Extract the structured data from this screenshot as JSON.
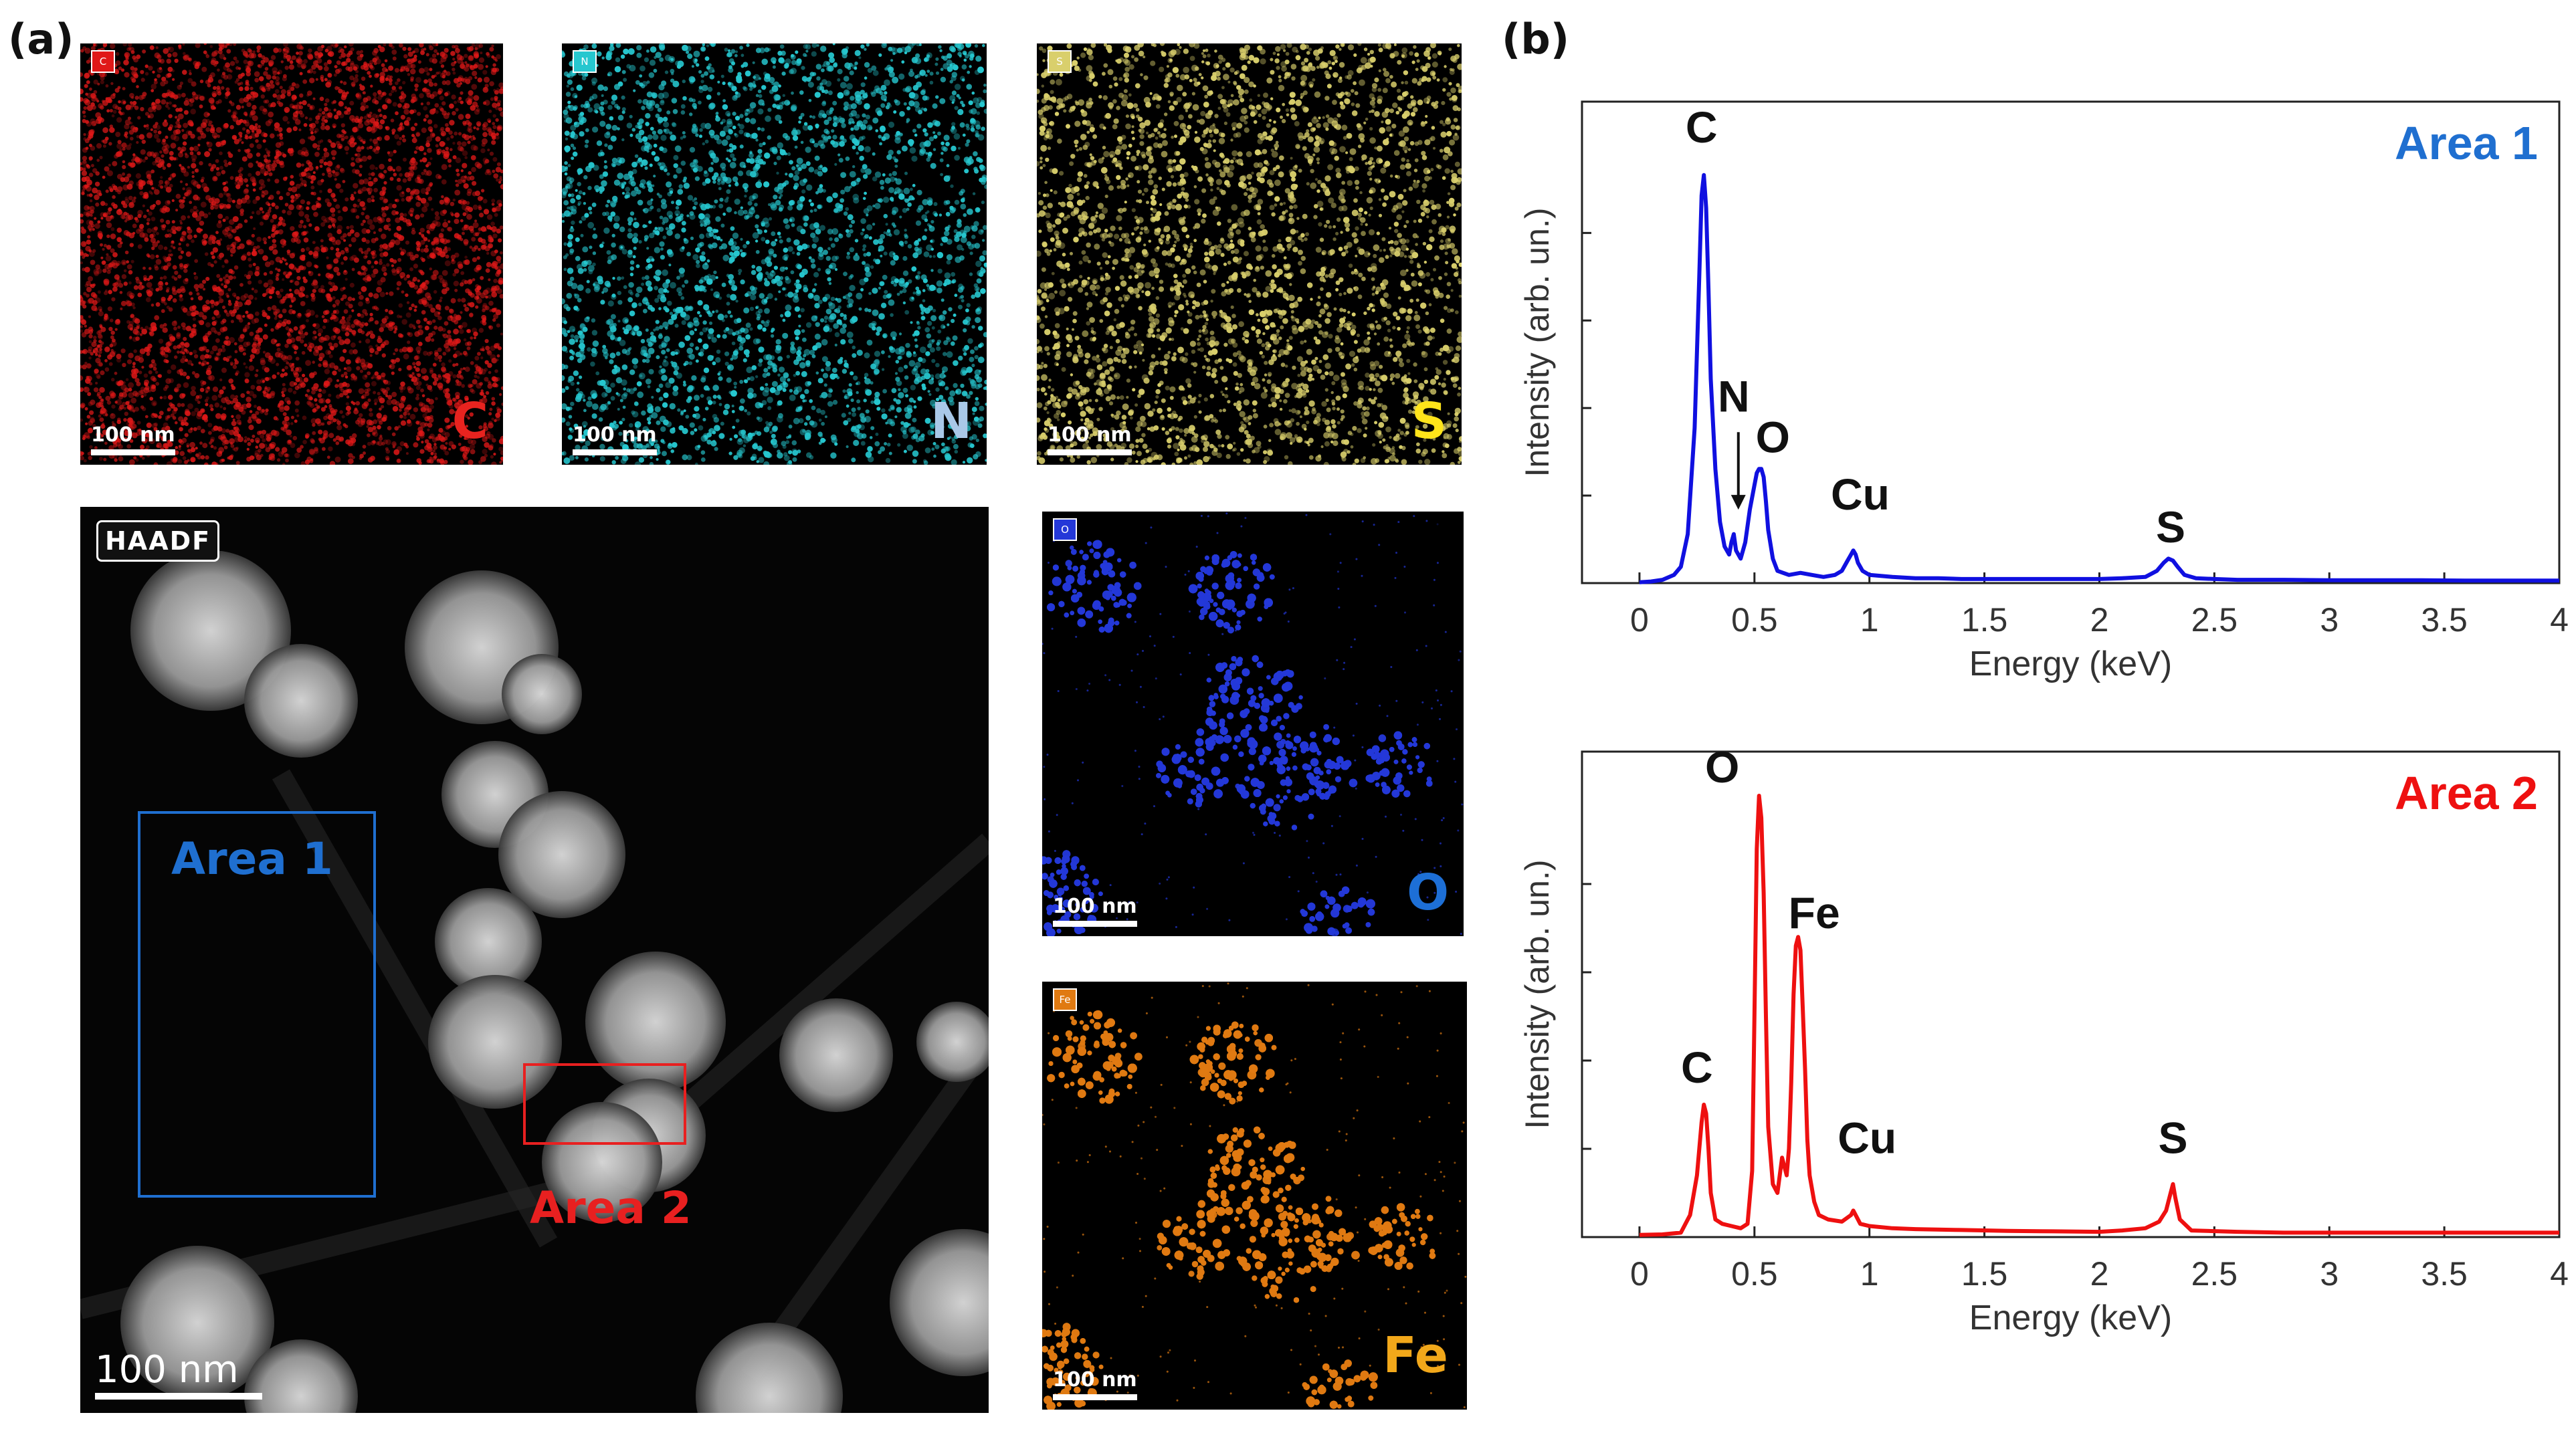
{
  "panel_labels": {
    "a": "(a)",
    "b": "(b)"
  },
  "maps": [
    {
      "key": "C",
      "chip": "C",
      "label": "C",
      "scale": "100 nm",
      "color": "#e01818",
      "label_color": "#e8231f"
    },
    {
      "key": "N",
      "chip": "N",
      "label": "N",
      "scale": "100 nm",
      "color": "#26c7cf",
      "label_color": "#a9c8e8"
    },
    {
      "key": "S",
      "chip": "S",
      "label": "S",
      "scale": "100 nm",
      "color": "#d9cf6c",
      "label_color": "#ffe41a"
    },
    {
      "key": "O",
      "chip": "O",
      "label": "O",
      "scale": "100 nm",
      "color": "#2438d8",
      "label_color": "#1d6fd6"
    },
    {
      "key": "Fe",
      "chip": "Fe",
      "label": "Fe",
      "scale": "100 nm",
      "color": "#e07a12",
      "label_color": "#f2a81a"
    }
  ],
  "haadf": {
    "tag": "HAADF",
    "scale": "100 nm",
    "area1_label": "Area 1",
    "area2_label": "Area 2",
    "area1_color": "#1f6fd0",
    "area2_color": "#e82020"
  },
  "chart_data": [
    {
      "type": "line",
      "annotation": "Area 1",
      "xlabel": "Energy (keV)",
      "ylabel": "Intensity (arb. un.)",
      "xlim": [
        -0.25,
        4
      ],
      "xticks": [
        0,
        0.5,
        1,
        1.5,
        2,
        2.5,
        3,
        3.5,
        4
      ],
      "xtick_labels": [
        "0",
        "0.5",
        "1",
        "1.5",
        "2",
        "2.5",
        "3",
        "3.5",
        "4"
      ],
      "ylim": [
        0,
        1.18
      ],
      "color": "#1010e0",
      "peak_labels": [
        {
          "text": "C",
          "x": 0.27,
          "y": 1.08
        },
        {
          "text": "N",
          "x": 0.41,
          "y": 0.42
        },
        {
          "text": "O",
          "x": 0.58,
          "y": 0.32
        },
        {
          "text": "Cu",
          "x": 0.96,
          "y": 0.18
        },
        {
          "text": "S",
          "x": 2.31,
          "y": 0.1
        }
      ],
      "arrow": {
        "from": [
          0.43,
          0.37
        ],
        "to": [
          0.43,
          0.18
        ]
      },
      "x": [
        0.0,
        0.05,
        0.1,
        0.15,
        0.18,
        0.21,
        0.24,
        0.26,
        0.27,
        0.28,
        0.29,
        0.3,
        0.31,
        0.33,
        0.35,
        0.37,
        0.39,
        0.4,
        0.41,
        0.42,
        0.44,
        0.46,
        0.48,
        0.5,
        0.51,
        0.52,
        0.53,
        0.54,
        0.55,
        0.56,
        0.58,
        0.6,
        0.65,
        0.7,
        0.75,
        0.8,
        0.85,
        0.88,
        0.9,
        0.92,
        0.93,
        0.94,
        0.95,
        0.97,
        1.0,
        1.1,
        1.2,
        1.3,
        1.4,
        1.5,
        1.6,
        1.7,
        1.8,
        1.9,
        2.0,
        2.1,
        2.2,
        2.25,
        2.28,
        2.3,
        2.32,
        2.34,
        2.37,
        2.42,
        2.5,
        2.6,
        2.8,
        3.0,
        3.2,
        3.4,
        3.6,
        3.8,
        4.0
      ],
      "y": [
        0.002,
        0.004,
        0.008,
        0.02,
        0.04,
        0.12,
        0.38,
        0.75,
        0.95,
        1.0,
        0.92,
        0.72,
        0.5,
        0.28,
        0.15,
        0.09,
        0.07,
        0.1,
        0.12,
        0.08,
        0.06,
        0.1,
        0.18,
        0.24,
        0.27,
        0.28,
        0.28,
        0.26,
        0.2,
        0.13,
        0.06,
        0.03,
        0.02,
        0.025,
        0.02,
        0.015,
        0.02,
        0.03,
        0.05,
        0.07,
        0.08,
        0.07,
        0.05,
        0.03,
        0.02,
        0.015,
        0.012,
        0.012,
        0.01,
        0.01,
        0.01,
        0.01,
        0.01,
        0.01,
        0.01,
        0.012,
        0.015,
        0.03,
        0.05,
        0.06,
        0.055,
        0.04,
        0.02,
        0.012,
        0.01,
        0.008,
        0.008,
        0.007,
        0.007,
        0.007,
        0.006,
        0.006,
        0.006
      ]
    },
    {
      "type": "line",
      "annotation": "Area 2",
      "xlabel": "Energy (keV)",
      "ylabel": "Intensity (arb. un.)",
      "xlim": [
        -0.25,
        4
      ],
      "xticks": [
        0,
        0.5,
        1,
        1.5,
        2,
        2.5,
        3,
        3.5,
        4
      ],
      "xtick_labels": [
        "0",
        "0.5",
        "1",
        "1.5",
        "2",
        "2.5",
        "3",
        "3.5",
        "4"
      ],
      "ylim": [
        0,
        1.1
      ],
      "color": "#ee1010",
      "peak_labels": [
        {
          "text": "O",
          "x": 0.36,
          "y": 1.03
        },
        {
          "text": "Fe",
          "x": 0.76,
          "y": 0.7
        },
        {
          "text": "C",
          "x": 0.25,
          "y": 0.35
        },
        {
          "text": "Cu",
          "x": 0.99,
          "y": 0.19
        },
        {
          "text": "S",
          "x": 2.32,
          "y": 0.19
        }
      ],
      "x": [
        0.0,
        0.1,
        0.18,
        0.22,
        0.25,
        0.27,
        0.28,
        0.29,
        0.3,
        0.31,
        0.33,
        0.36,
        0.4,
        0.44,
        0.47,
        0.49,
        0.5,
        0.51,
        0.52,
        0.53,
        0.54,
        0.55,
        0.56,
        0.58,
        0.6,
        0.62,
        0.64,
        0.65,
        0.66,
        0.67,
        0.68,
        0.69,
        0.7,
        0.71,
        0.72,
        0.73,
        0.74,
        0.76,
        0.78,
        0.82,
        0.88,
        0.92,
        0.93,
        0.94,
        0.96,
        1.0,
        1.1,
        1.2,
        1.4,
        1.6,
        1.8,
        2.0,
        2.1,
        2.2,
        2.26,
        2.29,
        2.31,
        2.32,
        2.33,
        2.35,
        2.4,
        2.6,
        2.8,
        3.0,
        3.2,
        3.4,
        3.6,
        3.8,
        4.0
      ],
      "y": [
        0.005,
        0.006,
        0.01,
        0.05,
        0.14,
        0.26,
        0.3,
        0.28,
        0.2,
        0.1,
        0.04,
        0.03,
        0.025,
        0.02,
        0.03,
        0.15,
        0.5,
        0.88,
        1.0,
        0.95,
        0.78,
        0.5,
        0.25,
        0.12,
        0.1,
        0.18,
        0.14,
        0.2,
        0.35,
        0.55,
        0.66,
        0.68,
        0.65,
        0.52,
        0.38,
        0.22,
        0.14,
        0.08,
        0.05,
        0.04,
        0.035,
        0.05,
        0.06,
        0.05,
        0.03,
        0.025,
        0.02,
        0.018,
        0.016,
        0.014,
        0.013,
        0.012,
        0.015,
        0.02,
        0.035,
        0.06,
        0.1,
        0.12,
        0.09,
        0.04,
        0.015,
        0.012,
        0.01,
        0.01,
        0.01,
        0.01,
        0.01,
        0.01,
        0.01
      ]
    }
  ]
}
